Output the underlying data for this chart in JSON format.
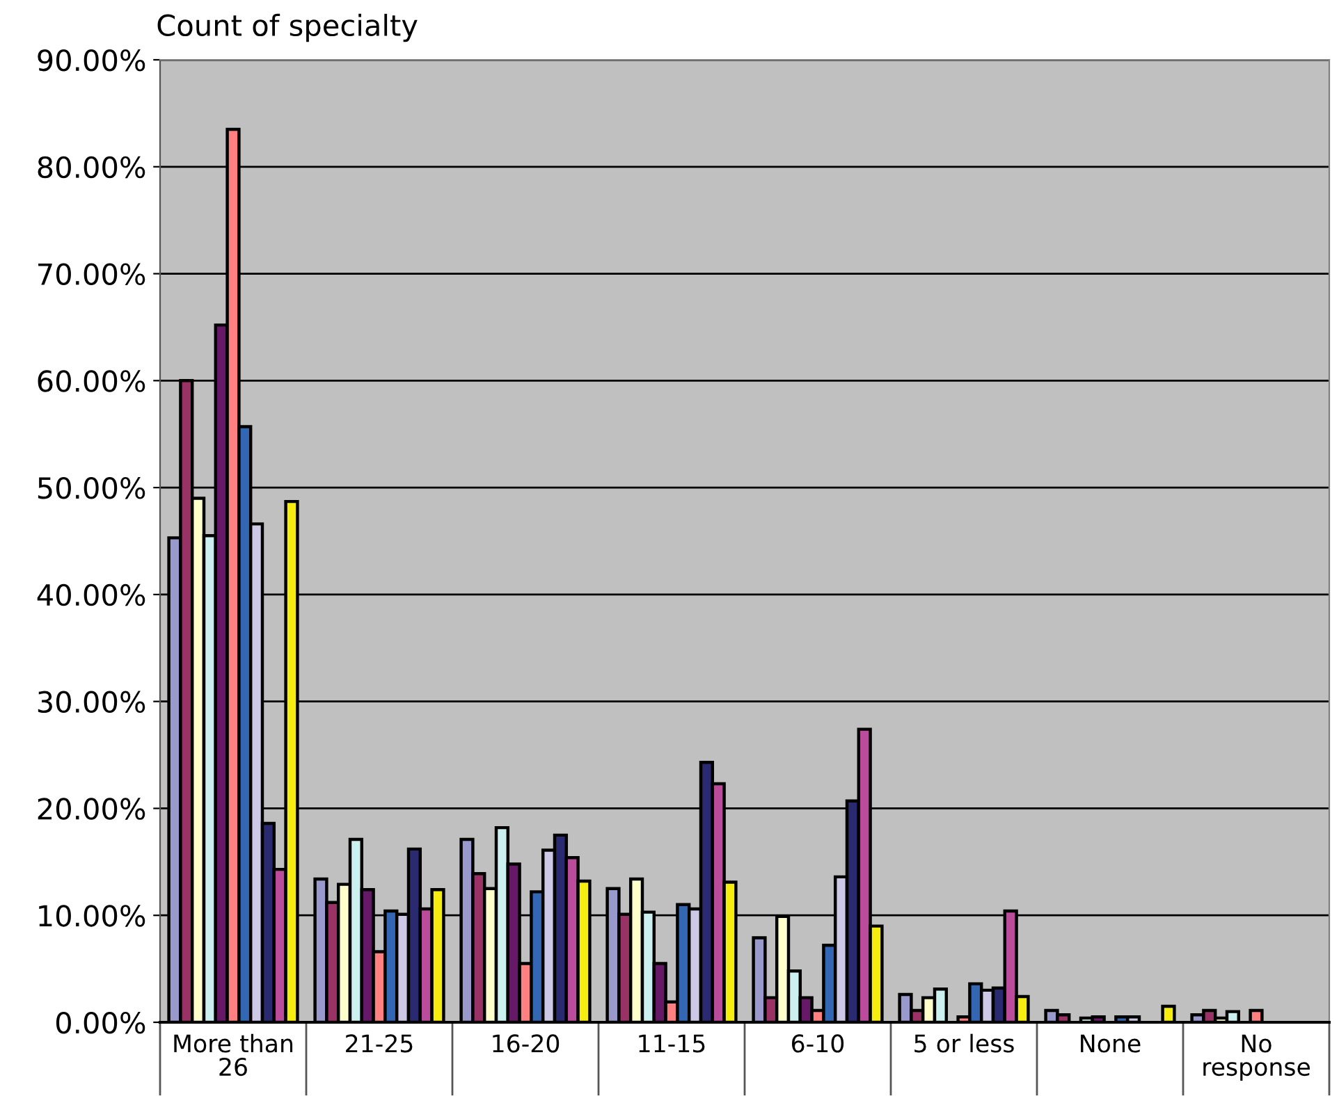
{
  "chart_data": {
    "type": "bar",
    "title": "Count of specialty",
    "categories": [
      "More than\n26",
      "21-25",
      "16-20",
      "11-15",
      "6-10",
      "5 or less",
      "None",
      "No\nresponse"
    ],
    "series": [
      {
        "color": "#9999cc",
        "values": [
          45.3,
          13.4,
          17.1,
          12.5,
          7.9,
          2.6,
          1.1,
          0.7
        ]
      },
      {
        "color": "#993366",
        "values": [
          60.0,
          11.2,
          13.9,
          10.1,
          2.3,
          1.1,
          0.7,
          1.1
        ]
      },
      {
        "color": "#ffffcc",
        "values": [
          49.0,
          12.9,
          12.5,
          13.4,
          9.9,
          2.3,
          null,
          0.4
        ]
      },
      {
        "color": "#ccf0f0",
        "values": [
          45.5,
          17.1,
          18.2,
          10.3,
          4.8,
          3.1,
          0.4,
          1.0
        ]
      },
      {
        "color": "#661966",
        "values": [
          65.2,
          12.4,
          14.8,
          5.5,
          2.3,
          null,
          0.5,
          null
        ]
      },
      {
        "color": "#ff8080",
        "values": [
          83.5,
          6.6,
          5.5,
          1.9,
          1.1,
          0.5,
          null,
          1.1
        ]
      },
      {
        "color": "#3366b3",
        "values": [
          55.7,
          10.4,
          12.2,
          11.0,
          7.2,
          3.6,
          0.5,
          null
        ]
      },
      {
        "color": "#ccc8e6",
        "values": [
          46.6,
          10.1,
          16.1,
          10.6,
          13.6,
          3.0,
          0.5,
          null
        ]
      },
      {
        "color": "#2a2a70",
        "values": [
          18.6,
          16.2,
          17.5,
          24.3,
          20.7,
          3.2,
          null,
          null
        ]
      },
      {
        "color": "#bb4c9c",
        "values": [
          14.3,
          10.6,
          15.4,
          22.3,
          27.4,
          10.4,
          null,
          null
        ]
      },
      {
        "color": "#f5ed10",
        "values": [
          48.7,
          12.4,
          13.2,
          13.1,
          9.0,
          2.4,
          1.5,
          null
        ]
      }
    ],
    "ylim": [
      0,
      90
    ],
    "yticks": [
      {
        "value": 0,
        "label": "0.00%"
      },
      {
        "value": 10,
        "label": "10.00%"
      },
      {
        "value": 20,
        "label": "20.00%"
      },
      {
        "value": 30,
        "label": "30.00%"
      },
      {
        "value": 40,
        "label": "40.00%"
      },
      {
        "value": 50,
        "label": "50.00%"
      },
      {
        "value": 60,
        "label": "60.00%"
      },
      {
        "value": 70,
        "label": "70.00%"
      },
      {
        "value": 80,
        "label": "80.00%"
      },
      {
        "value": 90,
        "label": "90.00%"
      }
    ],
    "grid": "y",
    "legend": false
  }
}
